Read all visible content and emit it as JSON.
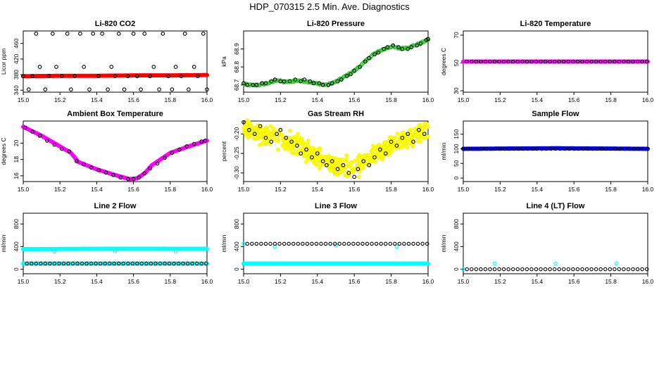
{
  "page_title": "HDP_070315  2.5 Min. Ave. Diagnostics",
  "colors": {
    "red": "#ff0000",
    "green": "#33cc33",
    "magenta": "#ff00ff",
    "yellow": "#ffff00",
    "blue": "#0000ff",
    "cyan": "#00ffff",
    "black": "#000000"
  },
  "chart_data": [
    {
      "type": "scatter",
      "id": "co2",
      "title": "Li-820 CO2",
      "ylabel": "Licor ppm",
      "xlim": [
        15.0,
        16.0
      ],
      "ylim": [
        335,
        492
      ],
      "xticks": [
        "15.0",
        "15.2",
        "15.4",
        "15.6",
        "15.8",
        "16.0"
      ],
      "yticks": [
        {
          "v": 340,
          "label": "340"
        },
        {
          "v": 380,
          "label": "380"
        },
        {
          "v": 420,
          "label": "420"
        },
        {
          "v": 460,
          "label": "460"
        }
      ],
      "series": [
        {
          "name": "CO2 (dense)",
          "color": "red",
          "dense": true,
          "filled": true,
          "x": [
            15.0,
            15.2,
            15.4,
            15.6,
            15.8,
            16.0
          ],
          "y": [
            376,
            377,
            377,
            378,
            378,
            379
          ]
        },
        {
          "name": "CO2 (sampled)",
          "color": "black",
          "filled": false,
          "x": [
            15.0,
            15.03,
            15.05,
            15.07,
            15.09,
            15.12,
            15.14,
            15.16,
            15.18,
            15.21,
            15.24,
            15.26,
            15.28,
            15.31,
            15.33,
            15.36,
            15.38,
            15.41,
            15.43,
            15.46,
            15.48,
            15.5,
            15.52,
            15.55,
            15.57,
            15.6,
            15.62,
            15.64,
            15.66,
            15.69,
            15.71,
            15.74,
            15.76,
            15.79,
            15.81,
            15.83,
            15.86,
            15.88,
            15.9,
            15.93,
            15.95,
            15.98,
            16.0
          ],
          "y": [
            376,
            342,
            376,
            485,
            400,
            342,
            376,
            485,
            400,
            376,
            485,
            342,
            376,
            485,
            400,
            342,
            485,
            376,
            485,
            342,
            400,
            376,
            485,
            342,
            376,
            485,
            376,
            342,
            485,
            376,
            400,
            342,
            485,
            376,
            342,
            400,
            376,
            485,
            342,
            400,
            376,
            485,
            342
          ]
        }
      ]
    },
    {
      "type": "scatter",
      "id": "pressure",
      "title": "Li-820 Pressure",
      "ylabel": "kPa",
      "xlim": [
        15.0,
        16.0
      ],
      "ylim": [
        68.66,
        69.0
      ],
      "xticks": [
        "15.0",
        "15.2",
        "15.4",
        "15.6",
        "15.8",
        "16.0"
      ],
      "yticks": [
        {
          "v": 68.7,
          "label": "68.7"
        },
        {
          "v": 68.8,
          "label": "68.8"
        },
        {
          "v": 68.9,
          "label": "68.9"
        }
      ],
      "series": [
        {
          "name": "Pressure (dense)",
          "color": "green",
          "dense": true,
          "x": [
            15.0,
            15.05,
            15.1,
            15.15,
            15.18,
            15.22,
            15.3,
            15.35,
            15.4,
            15.45,
            15.5,
            15.55,
            15.6,
            15.65,
            15.7,
            15.75,
            15.8,
            15.85,
            15.9,
            15.95,
            16.0
          ],
          "y": [
            68.705,
            68.698,
            68.703,
            68.714,
            68.728,
            68.716,
            68.725,
            68.718,
            68.707,
            68.7,
            68.718,
            68.748,
            68.778,
            68.822,
            68.868,
            68.895,
            68.913,
            68.902,
            68.911,
            68.928,
            68.952
          ]
        },
        {
          "name": "Pressure (sampled)",
          "color": "black",
          "filled": false,
          "x": [
            15.0,
            15.02,
            15.05,
            15.07,
            15.1,
            15.12,
            15.15,
            15.17,
            15.2,
            15.22,
            15.25,
            15.28,
            15.31,
            15.33,
            15.36,
            15.38,
            15.41,
            15.43,
            15.46,
            15.48,
            15.51,
            15.53,
            15.56,
            15.58,
            15.6,
            15.63,
            15.66,
            15.68,
            15.71,
            15.73,
            15.76,
            15.78,
            15.81,
            15.84,
            15.86,
            15.89,
            15.91,
            15.94,
            15.96,
            15.99,
            16.0
          ],
          "y": [
            68.71,
            68.7,
            68.7,
            68.7,
            68.71,
            68.71,
            68.72,
            68.73,
            68.72,
            68.72,
            68.72,
            68.73,
            68.72,
            68.73,
            68.72,
            68.71,
            68.71,
            68.7,
            68.7,
            68.71,
            68.72,
            68.73,
            68.75,
            68.76,
            68.78,
            68.8,
            68.83,
            68.85,
            68.87,
            68.88,
            68.9,
            68.91,
            68.92,
            68.91,
            68.9,
            68.9,
            68.91,
            68.92,
            68.93,
            68.95,
            68.955
          ]
        }
      ]
    },
    {
      "type": "scatter",
      "id": "temperature",
      "title": "Li-820 Temperature",
      "ylabel": "degrees C",
      "xlim": [
        15.0,
        16.0
      ],
      "ylim": [
        29,
        73
      ],
      "xticks": [
        "15.0",
        "15.2",
        "15.4",
        "15.6",
        "15.8",
        "16.0"
      ],
      "yticks": [
        {
          "v": 30,
          "label": "30"
        },
        {
          "v": 50,
          "label": "50"
        },
        {
          "v": 70,
          "label": "70"
        }
      ],
      "series": [
        {
          "name": "Temp (dense)",
          "color": "magenta",
          "dense": true,
          "filled": true,
          "x": [
            15.0,
            16.0
          ],
          "y": [
            51,
            51
          ]
        },
        {
          "name": "Temp (sampled)",
          "color": "black",
          "filled": false,
          "step": 0.025,
          "x": [
            15.02,
            16.0
          ],
          "y": [
            51,
            51
          ]
        }
      ]
    },
    {
      "type": "scatter",
      "id": "ambient",
      "title": "Ambient Box Temperature",
      "ylabel": "degrees C",
      "xlim": [
        15.0,
        16.0
      ],
      "ylim": [
        15.3,
        22.7
      ],
      "xticks": [
        "15.0",
        "15.2",
        "15.4",
        "15.6",
        "15.8",
        "16.0"
      ],
      "yticks": [
        {
          "v": 16,
          "label": "16"
        },
        {
          "v": 18,
          "label": "18"
        },
        {
          "v": 20,
          "label": "20"
        }
      ],
      "series": [
        {
          "name": "Ambient (dense)",
          "color": "magenta",
          "dense": true,
          "filled": true,
          "x": [
            15.0,
            15.1,
            15.2,
            15.26,
            15.3,
            15.4,
            15.5,
            15.58,
            15.62,
            15.66,
            15.7,
            15.8,
            15.9,
            16.0
          ],
          "y": [
            22.0,
            20.9,
            19.6,
            18.8,
            17.7,
            16.8,
            16.1,
            15.6,
            15.7,
            16.3,
            17.3,
            18.8,
            19.6,
            20.3
          ]
        },
        {
          "name": "Ambient (sampled)",
          "color": "black",
          "filled": false,
          "x": [
            15.01,
            15.05,
            15.09,
            15.13,
            15.17,
            15.21,
            15.25,
            15.29,
            15.33,
            15.37,
            15.41,
            15.45,
            15.49,
            15.53,
            15.57,
            15.6,
            15.63,
            15.66,
            15.69,
            15.73,
            15.77,
            15.81,
            15.85,
            15.89,
            15.93,
            15.97,
            15.99
          ],
          "y": [
            21.9,
            21.4,
            20.9,
            20.3,
            19.8,
            19.3,
            19.0,
            17.8,
            17.4,
            17.0,
            16.7,
            16.4,
            16.1,
            15.8,
            15.6,
            15.6,
            15.8,
            16.3,
            16.9,
            17.5,
            18.2,
            18.8,
            19.2,
            19.6,
            19.9,
            20.2,
            20.3
          ]
        }
      ]
    },
    {
      "type": "scatter",
      "id": "rh",
      "title": "Gas Stream RH",
      "ylabel": "percent",
      "xlim": [
        15.0,
        16.0
      ],
      "ylim": [
        -0.322,
        -0.167
      ],
      "xticks": [
        "15.0",
        "15.2",
        "15.4",
        "15.6",
        "15.8",
        "16.0"
      ],
      "yticks": [
        {
          "v": -0.3,
          "label": "-0.30"
        },
        {
          "v": -0.25,
          "label": "-0.25"
        },
        {
          "v": -0.2,
          "label": "-0.20"
        }
      ],
      "series": [
        {
          "name": "RH (cloud)",
          "color": "yellow",
          "cloud": true,
          "spread": 0.023,
          "x": [
            15.0,
            15.1,
            15.2,
            15.3,
            15.4,
            15.5,
            15.6,
            15.7,
            15.8,
            15.9,
            16.0
          ],
          "y": [
            -0.19,
            -0.2,
            -0.21,
            -0.23,
            -0.26,
            -0.28,
            -0.29,
            -0.26,
            -0.23,
            -0.21,
            -0.19
          ]
        },
        {
          "name": "RH (sampled)",
          "color": "black",
          "filled": false,
          "x": [
            15.0,
            15.03,
            15.06,
            15.09,
            15.12,
            15.15,
            15.18,
            15.2,
            15.23,
            15.26,
            15.29,
            15.31,
            15.34,
            15.37,
            15.4,
            15.43,
            15.45,
            15.48,
            15.51,
            15.54,
            15.57,
            15.6,
            15.62,
            15.65,
            15.68,
            15.71,
            15.74,
            15.77,
            15.8,
            15.83,
            15.86,
            15.89,
            15.92,
            15.95,
            15.98
          ],
          "y": [
            -0.17,
            -0.19,
            -0.2,
            -0.18,
            -0.21,
            -0.22,
            -0.2,
            -0.19,
            -0.21,
            -0.22,
            -0.23,
            -0.25,
            -0.24,
            -0.26,
            -0.25,
            -0.27,
            -0.28,
            -0.27,
            -0.29,
            -0.28,
            -0.3,
            -0.31,
            -0.29,
            -0.27,
            -0.28,
            -0.26,
            -0.24,
            -0.25,
            -0.22,
            -0.23,
            -0.21,
            -0.2,
            -0.22,
            -0.19,
            -0.2
          ]
        }
      ]
    },
    {
      "type": "scatter",
      "id": "sampleflow",
      "title": "Sample Flow",
      "ylabel": "ml/min",
      "xlim": [
        15.0,
        16.0
      ],
      "ylim": [
        -12,
        195
      ],
      "xticks": [
        "15.0",
        "15.2",
        "15.4",
        "15.6",
        "15.8",
        "16.0"
      ],
      "yticks": [
        {
          "v": 0,
          "label": "0"
        },
        {
          "v": 50,
          "label": "50"
        },
        {
          "v": 100,
          "label": "100"
        },
        {
          "v": 150,
          "label": "150"
        }
      ],
      "series": [
        {
          "name": "Flow (dense)",
          "color": "blue",
          "dense": true,
          "filled": true,
          "x": [
            15.0,
            15.5,
            16.0
          ],
          "y": [
            100,
            102,
            100
          ]
        },
        {
          "name": "Flow (sampled)",
          "color": "black",
          "filled": false,
          "step": 0.025,
          "x": [
            15.0,
            16.0
          ],
          "y": [
            100,
            100
          ]
        }
      ]
    },
    {
      "type": "scatter",
      "id": "line2",
      "title": "Line 2 Flow",
      "ylabel": "ml/min",
      "xlim": [
        15.0,
        16.0
      ],
      "ylim": [
        -80,
        990
      ],
      "xticks": [
        "15.0",
        "15.2",
        "15.4",
        "15.6",
        "15.8",
        "16.0"
      ],
      "yticks": [
        {
          "v": 0,
          "label": "0"
        },
        {
          "v": 400,
          "label": "400"
        },
        {
          "v": 800,
          "label": "800"
        }
      ],
      "series": [
        {
          "name": "L2 upper (dense)",
          "color": "cyan",
          "dense": true,
          "filled": true,
          "x": [
            15.0,
            15.5,
            16.0
          ],
          "y": [
            355,
            362,
            360
          ]
        },
        {
          "name": "L2 lower (dense)",
          "color": "cyan",
          "dense": true,
          "filled": true,
          "x": [
            15.0,
            16.0
          ],
          "y": [
            100,
            100
          ]
        },
        {
          "name": "L2 upper spikes",
          "color": "cyan",
          "filled": false,
          "x": [
            15.0,
            15.17,
            15.5,
            15.83
          ],
          "y": [
            100,
            310,
            320,
            310
          ]
        },
        {
          "name": "L2 (sampled)",
          "color": "black",
          "filled": false,
          "step": 0.025,
          "x": [
            15.02,
            16.0
          ],
          "y": [
            100,
            100
          ]
        }
      ]
    },
    {
      "type": "scatter",
      "id": "line3",
      "title": "Line 3 Flow",
      "ylabel": "ml/min",
      "xlim": [
        15.0,
        16.0
      ],
      "ylim": [
        -80,
        990
      ],
      "xticks": [
        "15.0",
        "15.2",
        "15.4",
        "15.6",
        "15.8",
        "16.0"
      ],
      "yticks": [
        {
          "v": 0,
          "label": "0"
        },
        {
          "v": 400,
          "label": "400"
        },
        {
          "v": 800,
          "label": "800"
        }
      ],
      "series": [
        {
          "name": "L3 lower (dense)",
          "color": "cyan",
          "dense": true,
          "filled": true,
          "x": [
            15.0,
            16.0
          ],
          "y": [
            100,
            100
          ]
        },
        {
          "name": "L3 upper spikes",
          "color": "cyan",
          "filled": false,
          "x": [
            15.0,
            15.17,
            15.5,
            15.83
          ],
          "y": [
            450,
            400,
            420,
            400
          ]
        },
        {
          "name": "L3 upper (sampled)",
          "color": "black",
          "filled": false,
          "step": 0.025,
          "x": [
            15.02,
            16.0
          ],
          "y": [
            450,
            450
          ]
        }
      ]
    },
    {
      "type": "scatter",
      "id": "line4",
      "title": "Line 4 (LT) Flow",
      "ylabel": "ml/min",
      "xlim": [
        15.0,
        16.0
      ],
      "ylim": [
        -80,
        990
      ],
      "xticks": [
        "15.0",
        "15.2",
        "15.4",
        "15.6",
        "15.8",
        "16.0"
      ],
      "yticks": [
        {
          "v": 0,
          "label": "0"
        },
        {
          "v": 400,
          "label": "400"
        },
        {
          "v": 800,
          "label": "800"
        }
      ],
      "series": [
        {
          "name": "L4 spikes",
          "color": "cyan",
          "filled": false,
          "x": [
            15.0,
            15.17,
            15.5,
            15.83
          ],
          "y": [
            0,
            100,
            100,
            100
          ]
        },
        {
          "name": "L4 (sampled)",
          "color": "black",
          "filled": false,
          "step": 0.025,
          "x": [
            15.02,
            16.0
          ],
          "y": [
            0,
            0
          ]
        }
      ]
    }
  ]
}
